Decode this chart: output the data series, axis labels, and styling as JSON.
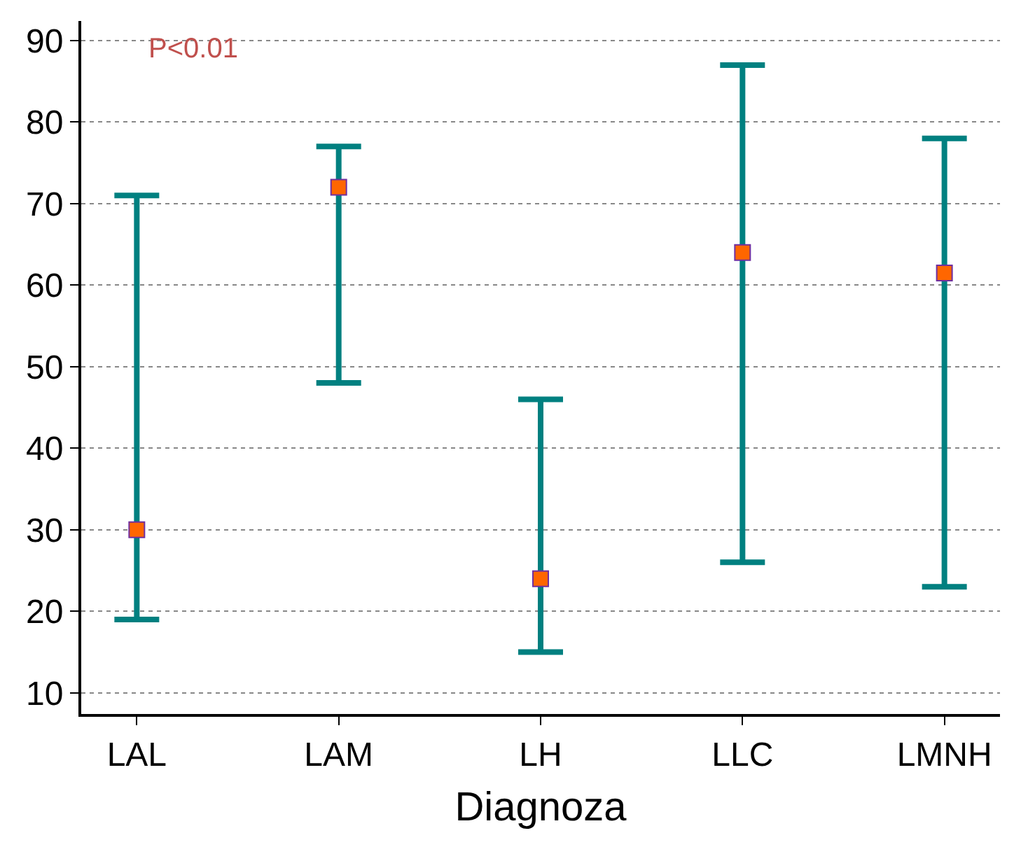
{
  "chart_data": {
    "type": "scatter",
    "xlabel": "Diagnoza",
    "categories": [
      "LAL",
      "LAM",
      "LH",
      "LLC",
      "LMNH"
    ],
    "series": [
      {
        "color": "#ff6600",
        "values": [
          30,
          72,
          24,
          64,
          61.5
        ],
        "errors": [
          [
            19,
            71
          ],
          [
            48,
            77
          ],
          [
            15,
            46
          ],
          [
            26,
            87
          ],
          [
            23,
            78
          ]
        ]
      }
    ],
    "ylim": [
      7.4,
      92.4
    ],
    "yticks": [
      10,
      20,
      30,
      40,
      50,
      60,
      70,
      80,
      90
    ],
    "grid": "y",
    "marker": "square",
    "annotations": [
      "P<0.01"
    ]
  }
}
